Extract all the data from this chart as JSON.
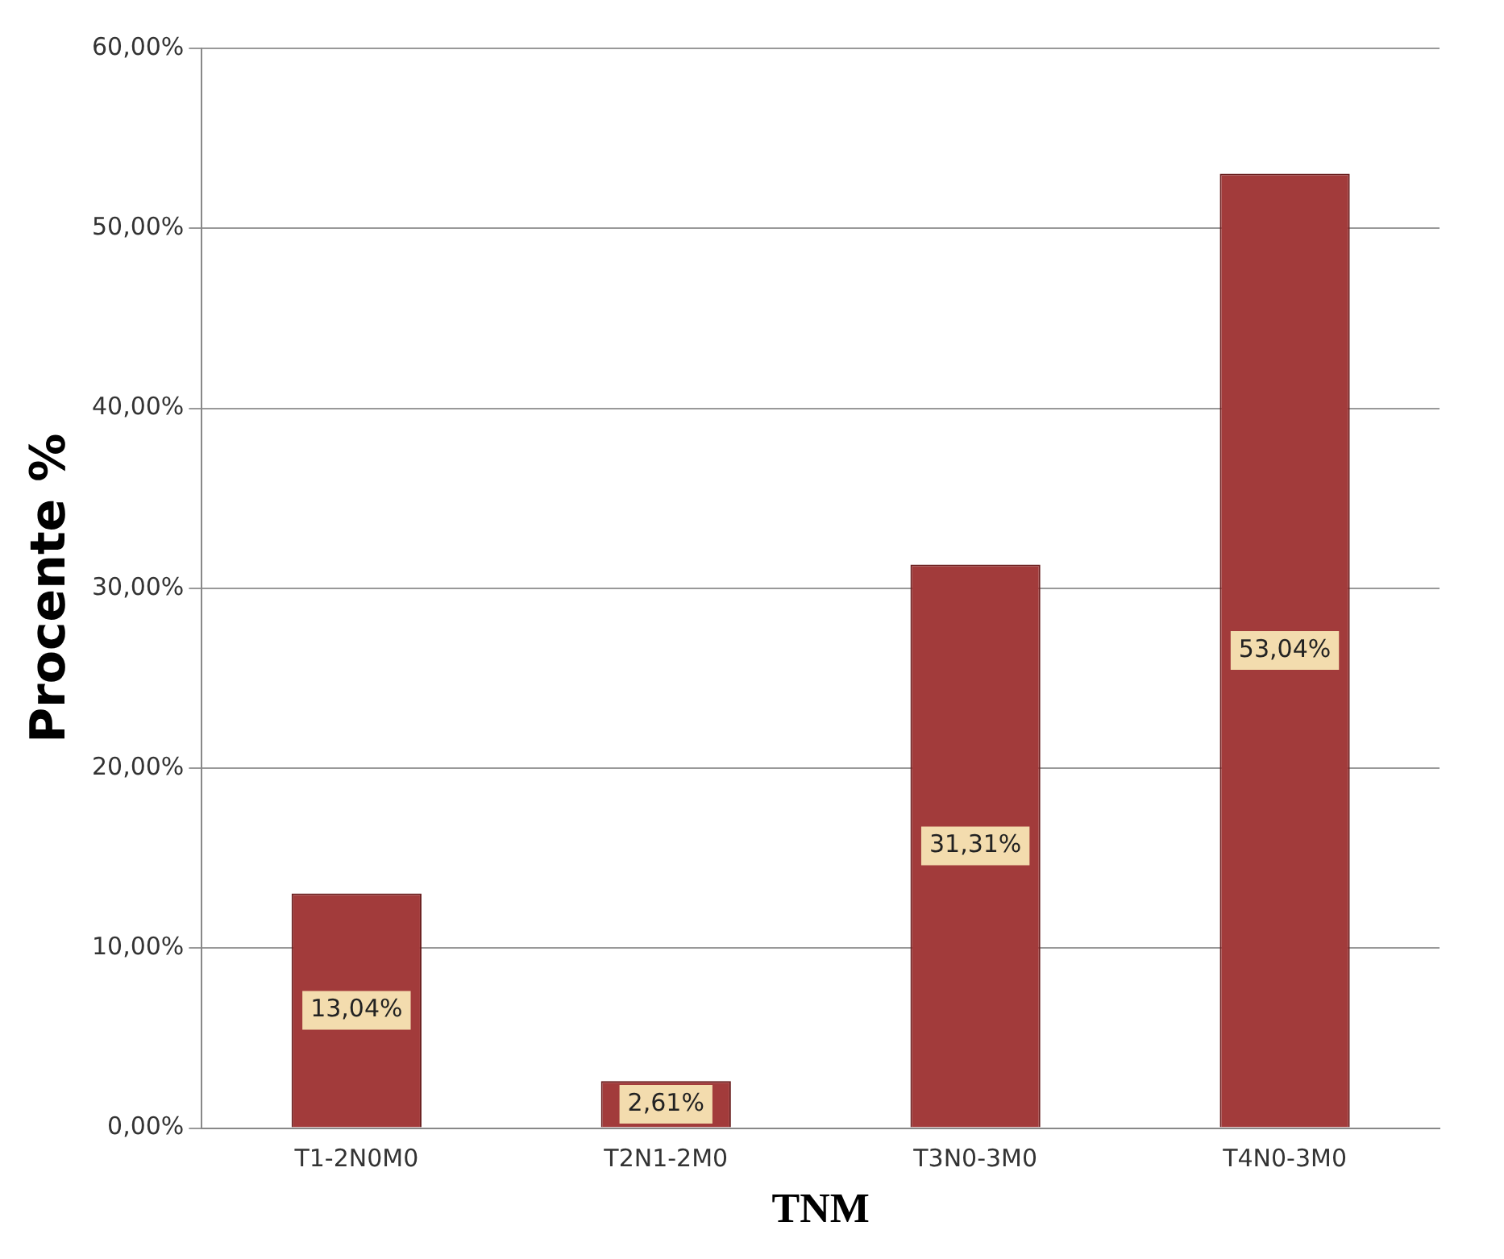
{
  "chart_data": {
    "type": "bar",
    "xlabel": "TNM",
    "ylabel": "Procente %",
    "categories": [
      "T1-2N0M0",
      "T2N1-2M0",
      "T3N0-3M0",
      "T4N0-3M0"
    ],
    "values": [
      13.04,
      2.61,
      31.31,
      53.04
    ],
    "value_labels": [
      "13,04%",
      "2,61%",
      "31,31%",
      "53,04%"
    ],
    "color": "#a23b3b",
    "ylim": [
      0,
      60
    ],
    "yticks": [
      {
        "value": 0,
        "label": "0,00%"
      },
      {
        "value": 10,
        "label": "10,00%"
      },
      {
        "value": 20,
        "label": "20,00%"
      },
      {
        "value": 30,
        "label": "30,00%"
      },
      {
        "value": 40,
        "label": "40,00%"
      },
      {
        "value": 50,
        "label": "50,00%"
      },
      {
        "value": 60,
        "label": "60,00%"
      }
    ],
    "grid": "y",
    "legend": false
  }
}
